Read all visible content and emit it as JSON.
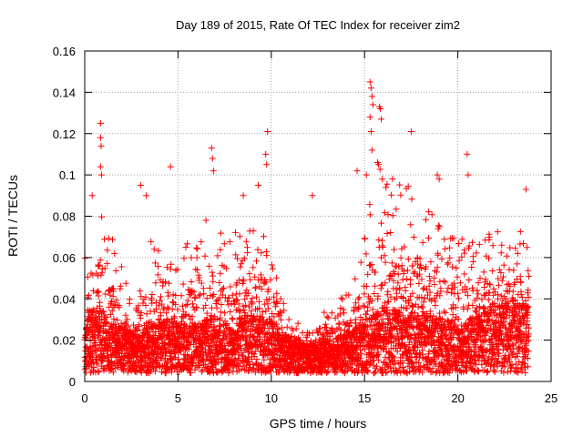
{
  "chart_data": {
    "type": "scatter",
    "title": "Day 189 of 2015, Rate Of TEC Index for receiver zim2",
    "xlabel": "GPS time / hours",
    "ylabel": "ROTI / TECUs",
    "xlim": [
      0,
      25
    ],
    "ylim": [
      0,
      0.16
    ],
    "xticks": [
      0,
      5,
      10,
      15,
      20,
      25
    ],
    "xtick_labels": [
      "0",
      "5",
      "10",
      "15",
      "20",
      "25"
    ],
    "yticks": [
      0,
      0.02,
      0.04,
      0.06,
      0.08,
      0.1,
      0.12,
      0.14,
      0.16
    ],
    "ytick_labels": [
      "0",
      "0.02",
      "0.04",
      "0.06",
      "0.08",
      "0.1",
      "0.12",
      "0.14",
      "0.16"
    ],
    "grid": true,
    "marker": "+",
    "color": "#ff0000",
    "series": [
      {
        "name": "ROTI",
        "sample_interval_hours": 0.02,
        "x_start": 0,
        "x_end": 23.8,
        "envelope": {
          "x": [
            0,
            0.5,
            0.9,
            1.5,
            2.5,
            3.0,
            3.5,
            4.5,
            5.0,
            5.5,
            6.0,
            6.8,
            7.5,
            8.5,
            9.5,
            10.0,
            10.5,
            11.0,
            12.0,
            13.0,
            14.0,
            15.0,
            15.4,
            15.8,
            16.5,
            17.5,
            18.5,
            19.5,
            20.5,
            21.0,
            22.0,
            23.0,
            23.8
          ],
          "median": [
            0.015,
            0.02,
            0.02,
            0.016,
            0.014,
            0.013,
            0.016,
            0.017,
            0.016,
            0.016,
            0.016,
            0.018,
            0.016,
            0.018,
            0.018,
            0.017,
            0.014,
            0.012,
            0.011,
            0.012,
            0.014,
            0.016,
            0.018,
            0.02,
            0.02,
            0.018,
            0.018,
            0.017,
            0.016,
            0.02,
            0.021,
            0.021,
            0.021
          ],
          "upper": [
            0.04,
            0.06,
            0.06,
            0.045,
            0.03,
            0.04,
            0.045,
            0.04,
            0.04,
            0.045,
            0.045,
            0.055,
            0.045,
            0.05,
            0.05,
            0.05,
            0.03,
            0.022,
            0.02,
            0.025,
            0.03,
            0.05,
            0.06,
            0.07,
            0.065,
            0.06,
            0.055,
            0.05,
            0.045,
            0.05,
            0.05,
            0.05,
            0.055
          ]
        },
        "spikes": [
          {
            "x": 0.4,
            "y": 0.09
          },
          {
            "x": 0.85,
            "y": 0.125
          },
          {
            "x": 0.85,
            "y": 0.118
          },
          {
            "x": 0.88,
            "y": 0.114
          },
          {
            "x": 0.85,
            "y": 0.104
          },
          {
            "x": 0.9,
            "y": 0.1
          },
          {
            "x": 3.0,
            "y": 0.095
          },
          {
            "x": 3.3,
            "y": 0.09
          },
          {
            "x": 4.6,
            "y": 0.104
          },
          {
            "x": 6.8,
            "y": 0.113
          },
          {
            "x": 6.85,
            "y": 0.108
          },
          {
            "x": 6.9,
            "y": 0.102
          },
          {
            "x": 8.5,
            "y": 0.09
          },
          {
            "x": 9.3,
            "y": 0.095
          },
          {
            "x": 9.7,
            "y": 0.11
          },
          {
            "x": 9.75,
            "y": 0.105
          },
          {
            "x": 9.8,
            "y": 0.121
          },
          {
            "x": 12.2,
            "y": 0.09
          },
          {
            "x": 14.6,
            "y": 0.102
          },
          {
            "x": 15.1,
            "y": 0.1
          },
          {
            "x": 15.3,
            "y": 0.145
          },
          {
            "x": 15.35,
            "y": 0.142
          },
          {
            "x": 15.4,
            "y": 0.138
          },
          {
            "x": 15.45,
            "y": 0.134
          },
          {
            "x": 15.3,
            "y": 0.128
          },
          {
            "x": 15.35,
            "y": 0.121
          },
          {
            "x": 15.4,
            "y": 0.112
          },
          {
            "x": 15.8,
            "y": 0.133
          },
          {
            "x": 15.85,
            "y": 0.132
          },
          {
            "x": 15.9,
            "y": 0.127
          },
          {
            "x": 15.7,
            "y": 0.106
          },
          {
            "x": 15.75,
            "y": 0.105
          },
          {
            "x": 15.95,
            "y": 0.098
          },
          {
            "x": 17.5,
            "y": 0.121
          },
          {
            "x": 18.9,
            "y": 0.1
          },
          {
            "x": 19.0,
            "y": 0.098
          },
          {
            "x": 20.5,
            "y": 0.11
          },
          {
            "x": 20.55,
            "y": 0.1
          },
          {
            "x": 23.65,
            "y": 0.093
          }
        ]
      }
    ]
  }
}
